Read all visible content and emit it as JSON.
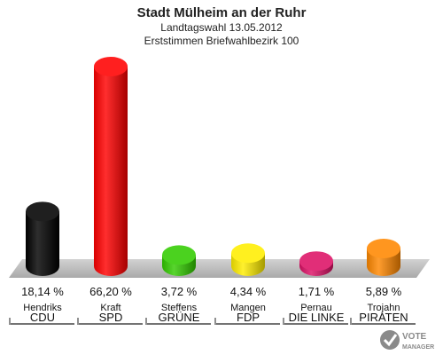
{
  "brand": {
    "line1": "VOTE",
    "line2": "MANAGER"
  },
  "chart_data": {
    "type": "bar",
    "title": "Stadt Mülheim an der Ruhr",
    "subtitle": "Landtagswahl 13.05.2012",
    "subtitle2": "Erststimmen Briefwahlbezirk 100",
    "categories": [
      "CDU",
      "SPD",
      "GRÜNE",
      "FDP",
      "DIE LINKE",
      "PIRATEN"
    ],
    "candidates": [
      "Hendriks",
      "Kraft",
      "Steffens",
      "Mangen",
      "Pernau",
      "Trojahn"
    ],
    "values": [
      18.14,
      66.2,
      3.72,
      4.34,
      1.71,
      5.89
    ],
    "value_labels": [
      "18,14 %",
      "66,20 %",
      "3,72 %",
      "4,34 %",
      "1,71 %",
      "5,89 %"
    ],
    "colors": [
      "#000000",
      "#ff0000",
      "#33cc00",
      "#ffee00",
      "#dd1166",
      "#ff8800"
    ],
    "ylim": [
      0,
      70
    ]
  }
}
